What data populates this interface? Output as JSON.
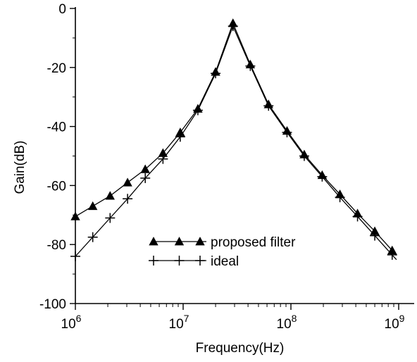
{
  "chart_data": {
    "type": "line",
    "title": "",
    "xlabel": "Frequency(Hz)",
    "ylabel": "Gain(dB)",
    "xscale": "log",
    "xlim": [
      1000000,
      1000000000
    ],
    "ylim": [
      -100,
      0
    ],
    "x_ticks": [
      {
        "value": 1000000,
        "base": "10",
        "exp": "6"
      },
      {
        "value": 10000000,
        "base": "10",
        "exp": "7"
      },
      {
        "value": 100000000,
        "base": "10",
        "exp": "8"
      },
      {
        "value": 1000000000,
        "base": "10",
        "exp": "9"
      }
    ],
    "y_ticks": [
      {
        "value": 0,
        "label": "0"
      },
      {
        "value": -20,
        "label": "-20"
      },
      {
        "value": -40,
        "label": "-40"
      },
      {
        "value": -60,
        "label": "-60"
      },
      {
        "value": -80,
        "label": "-80"
      },
      {
        "value": -100,
        "label": "-100"
      }
    ],
    "grid": false,
    "legend_position": "center-bottom",
    "series": [
      {
        "name": "proposed filter",
        "marker": "triangle",
        "color": "#000000",
        "x": [
          1000000,
          1450000,
          2100000,
          3050000,
          4450000,
          6500000,
          9400000,
          13700000,
          20000000,
          29000000,
          42000000,
          62000000,
          92000000,
          133000000,
          195000000,
          285000000,
          415000000,
          600000000,
          870000000
        ],
        "y": [
          -70.5,
          -67,
          -63.5,
          -59,
          -54.5,
          -49,
          -42,
          -34,
          -21.5,
          -5,
          -19,
          -32.5,
          -41.5,
          -49.5,
          -56.5,
          -63,
          -69.5,
          -75.5,
          -82
        ]
      },
      {
        "name": "ideal",
        "marker": "plus",
        "color": "#000000",
        "x": [
          1000000,
          1450000,
          2100000,
          3050000,
          4450000,
          6500000,
          9400000,
          13700000,
          20000000,
          29000000,
          42000000,
          62000000,
          92000000,
          133000000,
          195000000,
          285000000,
          415000000,
          600000000,
          870000000
        ],
        "y": [
          -84,
          -77.5,
          -71,
          -64.5,
          -57.5,
          -51,
          -43.5,
          -34.5,
          -22,
          -6,
          -19.5,
          -33,
          -42,
          -50,
          -57,
          -64,
          -70.5,
          -77,
          -83.5
        ]
      }
    ]
  }
}
